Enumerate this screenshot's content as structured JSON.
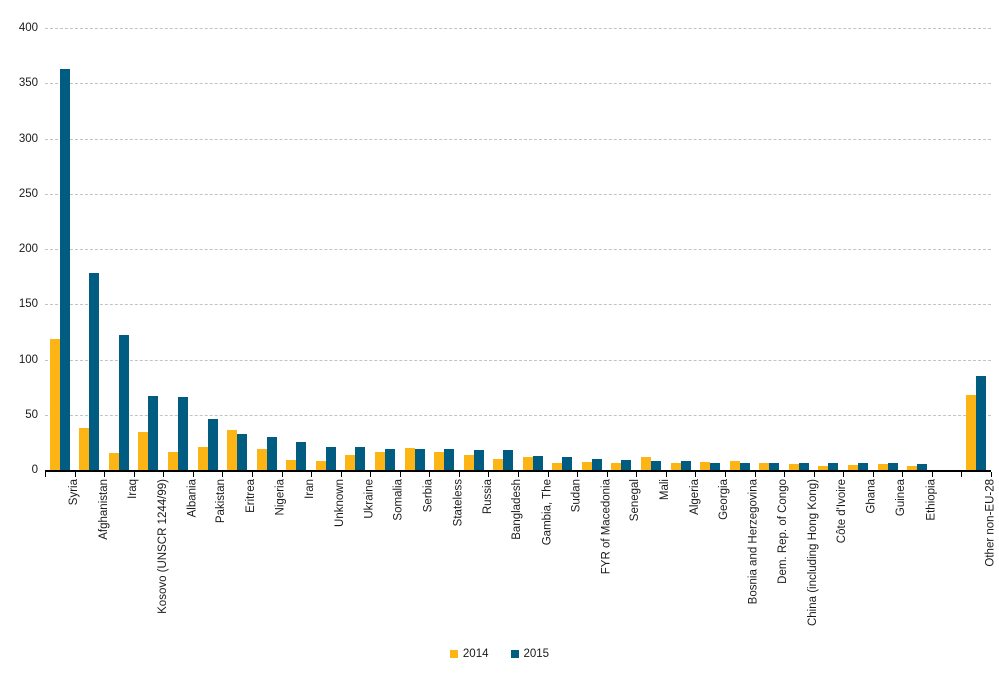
{
  "chart_data": {
    "type": "bar",
    "title": "",
    "categories": [
      "Syria",
      "Afghanistan",
      "Iraq",
      "Kosovo (UNSCR 1244/99)",
      "Albania",
      "Pakistan",
      "Eritrea",
      "Nigeria",
      "Iran",
      "Unknown",
      "Ukraine",
      "Somalia",
      "Serbia",
      "Stateless",
      "Russia",
      "Bangladesh",
      "Gambia, The",
      "Sudan",
      "FYR of Macedonia",
      "Senegal",
      "Mali",
      "Algeria",
      "Georgia",
      "Bosnia and Herzegovina",
      "Dem. Rep. of Congo",
      "China (including Hong Kong)",
      "Côte d'Ivoire",
      "Ghana",
      "Guinea",
      "Ethiopia",
      "",
      "Other non-EU-28"
    ],
    "series": [
      {
        "name": "2014",
        "color": "#FCB515",
        "values": [
          119,
          38,
          15,
          34,
          16,
          21,
          36,
          19,
          9,
          8,
          14,
          16,
          20,
          16,
          14,
          10,
          11.5,
          6,
          7,
          6.5,
          12,
          6,
          7,
          8,
          6.5,
          5,
          3.5,
          4.5,
          5.5,
          4,
          null,
          68
        ]
      },
      {
        "name": "2015",
        "color": "#005C80",
        "values": [
          363,
          178,
          122,
          67,
          66,
          46,
          33,
          30,
          25,
          21,
          21,
          19,
          19,
          19,
          18,
          18,
          13,
          12,
          10,
          9.5,
          8,
          8,
          6,
          6,
          6,
          6,
          6.5,
          6,
          6,
          5,
          null,
          85
        ]
      }
    ],
    "xlabel": "",
    "ylabel": "",
    "ylim": [
      0,
      400
    ],
    "ytick_step": 50,
    "yticks": [
      "0",
      "50",
      "100",
      "150",
      "200",
      "250",
      "300",
      "350",
      "400"
    ],
    "grid": "horizontal-dashed",
    "legend_position": "bottom-center",
    "gap_slot_index": 30
  }
}
